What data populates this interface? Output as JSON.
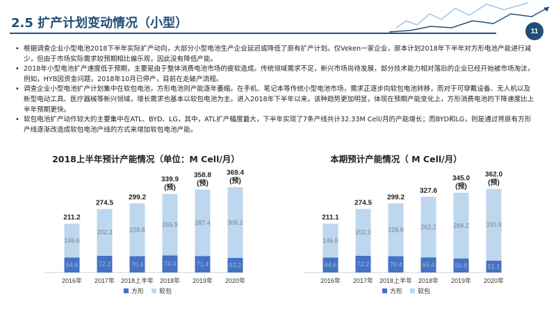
{
  "header": {
    "title": "2.5 扩产计划变动情况（小型）",
    "page_number": "11",
    "accent_color": "#1f4e79"
  },
  "bullets": [
    "根据调查企业小型电池2018下半年实际扩产动向，大部分小型电池生产企业延迟或降低了原有扩产计划。仅Veken一家企业，原本计划2018年下半年对方形电池产能进行减少，但由于市场实际需求较预期相比偏乐观，因此没有降低产能。",
    "2018年小型电池扩产速度低于预期，主要是由于整体消费电池市场的疲软造成。传统领域需求不足，新兴市场尚待发展，部分技术能力相对落后的企业已经开始被市场淘汰，例如，HYB因资金问题，2018年10月已停产，目前在走破产流程。",
    "调查企业小型电池扩产计划集中在软包电池，方形电池则产能逐年萎缩。在手机、笔记本等传统小型电池市场，需求正逐步向软包电池转移，而对于可穿戴设备、无人机以及新型电动工具、医疗器械等新兴领域，增长需求也基本以软包电池为主。进入2018年下半年以来，该种趋势更加明显，体现在预期产能变化上，方形消费电池的下降速度比上半年预期更快。",
    "软包电池扩产动作较大的主要集中在ATL、BYD、LG，其中，ATL扩产幅度最大，下半年实现了7条产线共计32.33M Cell/月的产能增长；而BYD和LG，则是通过将原有方形产线逐渐改造成软包电池产线的方式来增加软包电池产能。"
  ],
  "chart_data": [
    {
      "type": "bar",
      "stacked": true,
      "title": "2018上半年预计产能情况（单位：M Cell/月）",
      "categories": [
        "2016年",
        "2017年",
        "2018上半年",
        "2018年",
        "2019年",
        "2020年"
      ],
      "series": [
        {
          "name": "方形",
          "color": "#4472c4",
          "values": [
            64.6,
            72.2,
            70.4,
            74.0,
            71.4,
            63.2
          ]
        },
        {
          "name": "软包",
          "color": "#bdd7ee",
          "values": [
            146.6,
            202.3,
            228.8,
            265.9,
            287.4,
            306.2
          ]
        }
      ],
      "totals": [
        "211.2",
        "274.5",
        "299.2",
        "339.9",
        "358.8",
        "369.4"
      ],
      "total_notes": [
        "",
        "",
        "",
        "(预)",
        "(预)",
        "(预)"
      ],
      "ylim": [
        0,
        420
      ]
    },
    {
      "type": "bar",
      "stacked": true,
      "title": "本期预计产能情况（ M Cell/月）",
      "categories": [
        "2016年",
        "2017年",
        "2018上半年",
        "2018年",
        "2019年",
        "2020年"
      ],
      "series": [
        {
          "name": "方形",
          "color": "#4472c4",
          "values": [
            64.6,
            72.2,
            70.4,
            65.4,
            60.8,
            51.1
          ]
        },
        {
          "name": "软包",
          "color": "#bdd7ee",
          "values": [
            146.6,
            202.3,
            228.8,
            262.2,
            284.2,
            310.9
          ]
        }
      ],
      "totals": [
        "211.1",
        "274.5",
        "299.2",
        "327.6",
        "345.0",
        "362.0"
      ],
      "total_notes": [
        "",
        "",
        "",
        "",
        "(预)",
        "(预)"
      ],
      "ylim": [
        0,
        420
      ]
    }
  ]
}
